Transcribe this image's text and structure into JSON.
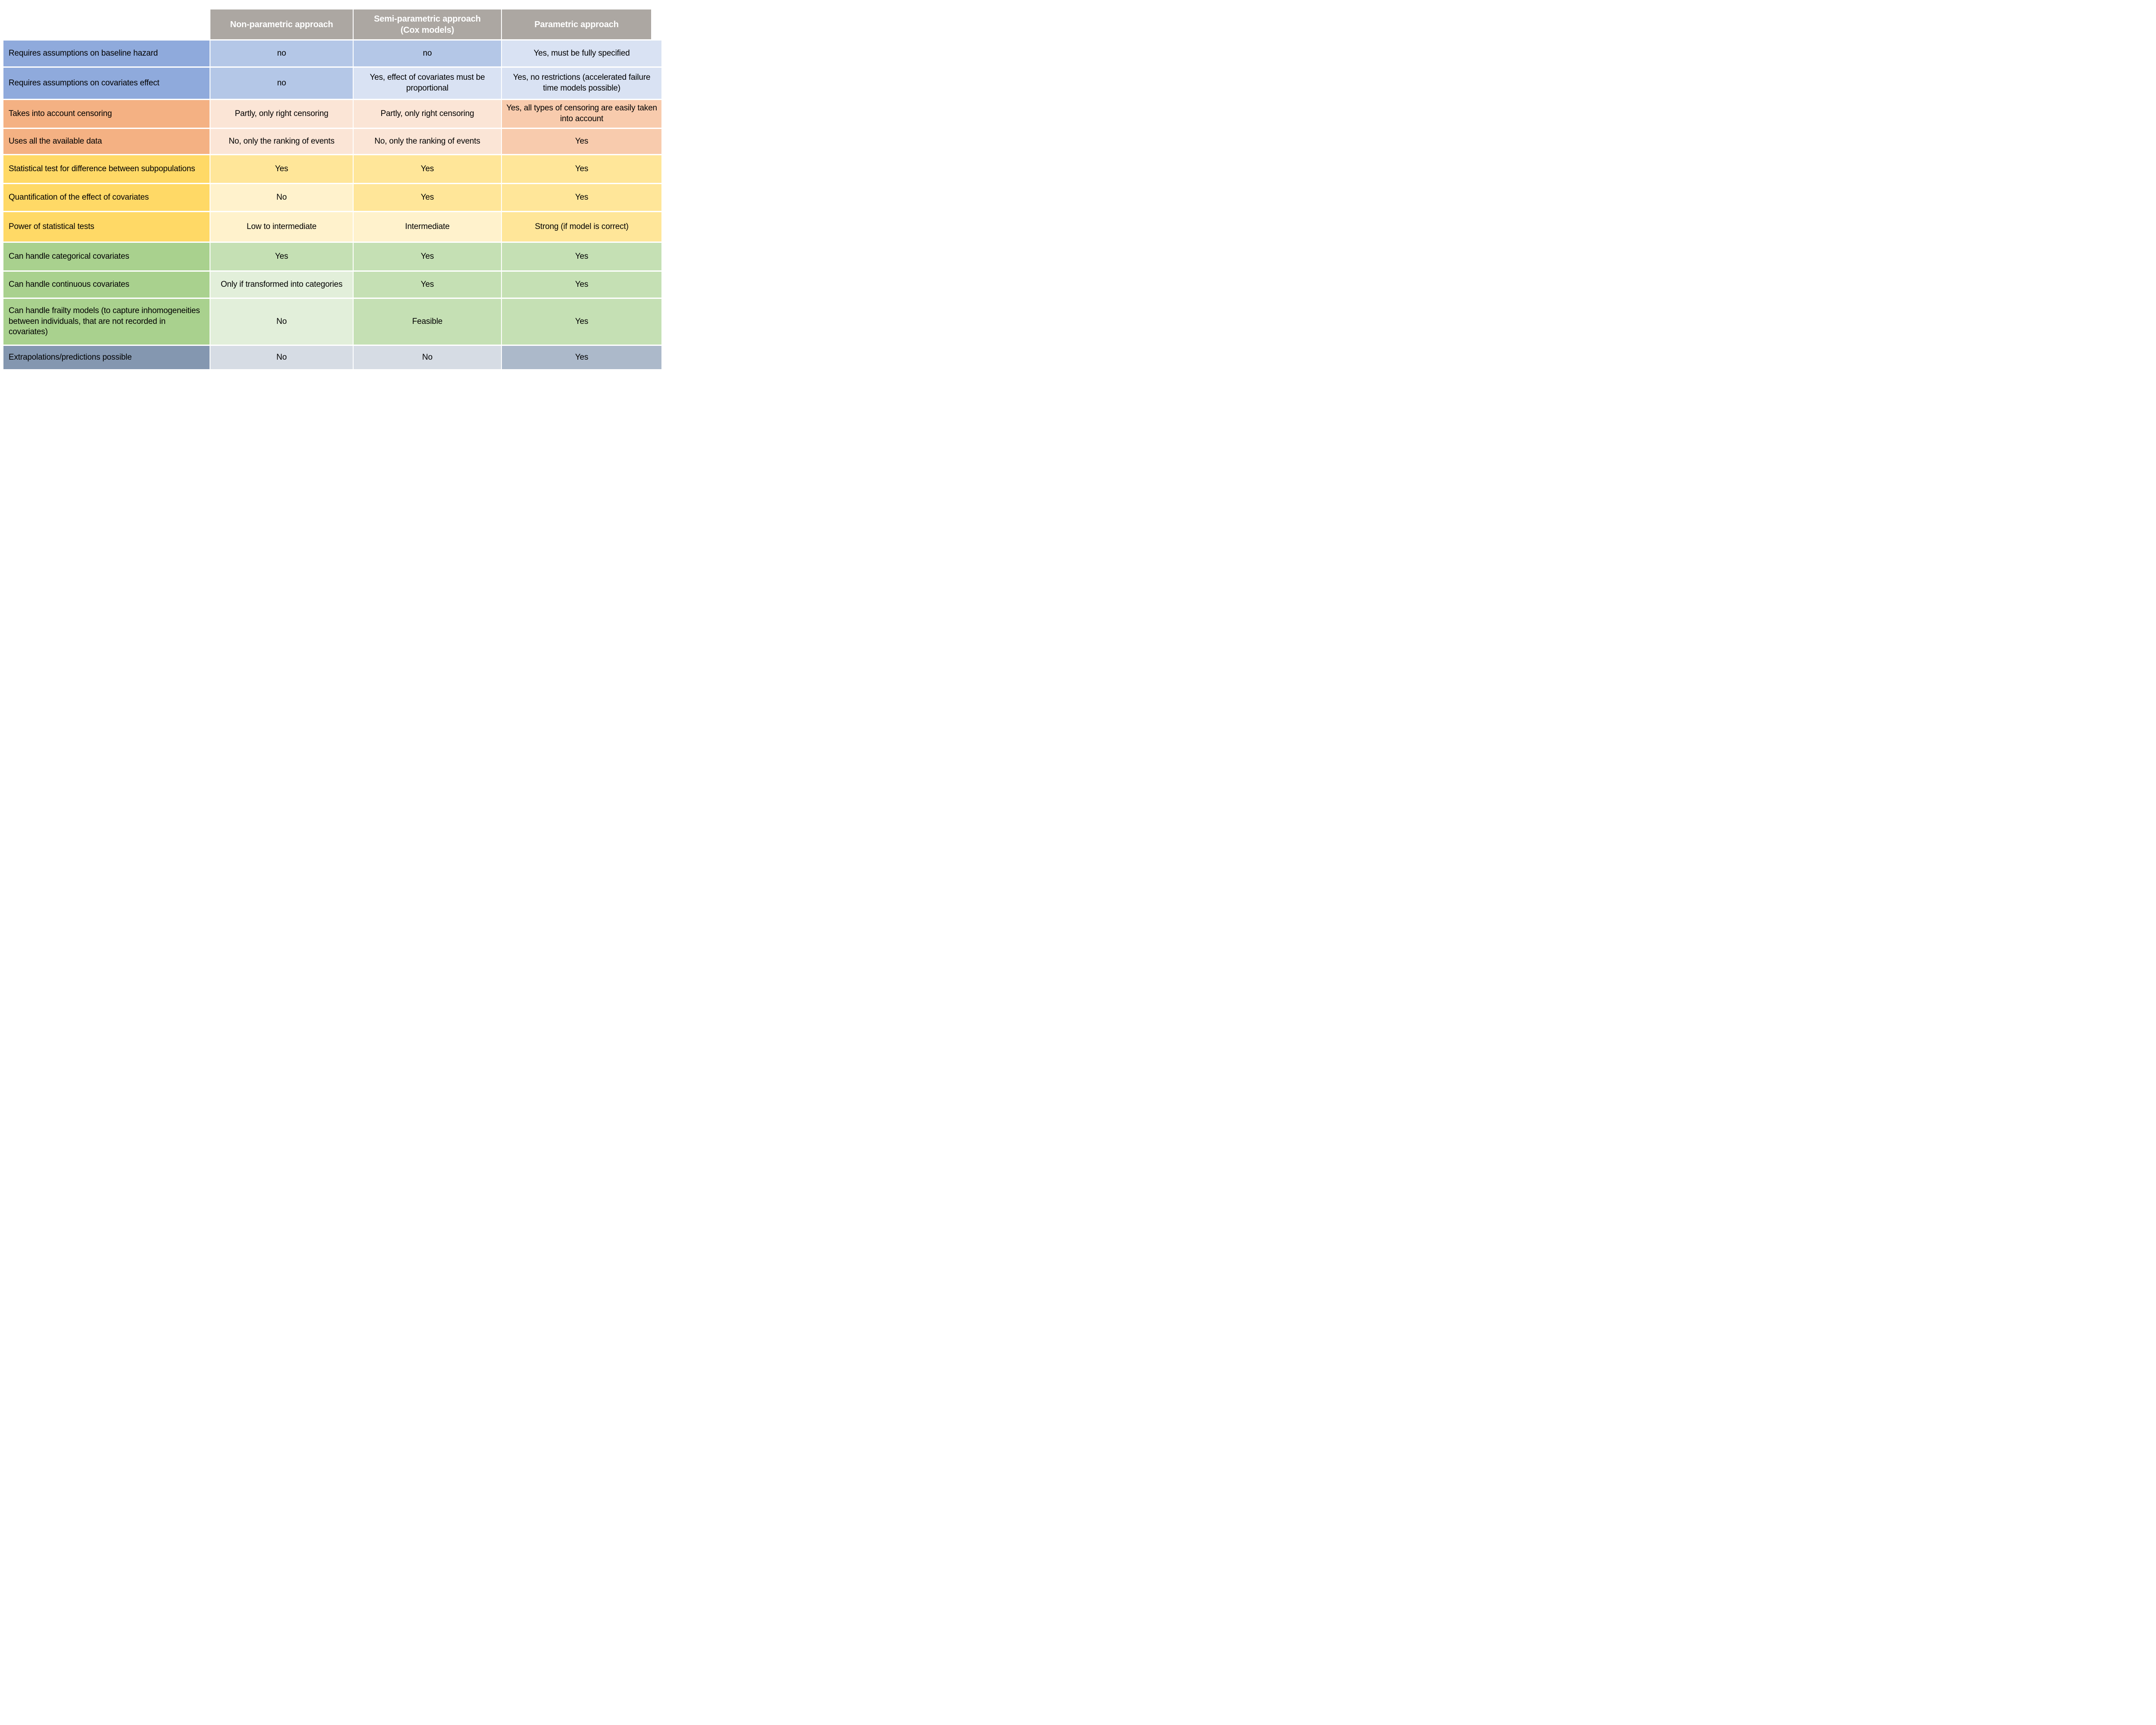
{
  "table": {
    "columns": {
      "nonparametric": "Non-parametric approach",
      "semiparametric": "Semi-parametric approach\n(Cox models)",
      "parametric": "Parametric approach"
    },
    "rows": [
      {
        "label": "Requires assumptions on baseline hazard",
        "cells": [
          "no",
          "no",
          "Yes, must be fully specified"
        ]
      },
      {
        "label": "Requires assumptions on covariates effect",
        "cells": [
          "no",
          "Yes, effect of covariates must be  proportional",
          "Yes, no restrictions (accelerated failure time models possible)"
        ]
      },
      {
        "label": "Takes into account censoring",
        "cells": [
          "Partly, only right censoring",
          "Partly, only right censoring",
          "Yes, all types of censoring are easily taken into account"
        ]
      },
      {
        "label": "Uses all the available data",
        "cells": [
          "No, only the ranking of events",
          "No, only the ranking of events",
          "Yes"
        ]
      },
      {
        "label": "Statistical test for difference between subpopulations",
        "cells": [
          "Yes",
          "Yes",
          "Yes"
        ]
      },
      {
        "label": "Quantification of the effect of covariates",
        "cells": [
          "No",
          "Yes",
          "Yes"
        ]
      },
      {
        "label": "Power of statistical tests",
        "cells": [
          "Low to intermediate",
          "Intermediate",
          "Strong (if model is correct)"
        ]
      },
      {
        "label": "Can handle categorical covariates",
        "cells": [
          "Yes",
          "Yes",
          "Yes"
        ]
      },
      {
        "label": "Can handle continuous covariates",
        "cells": [
          "Only if transformed into categories",
          "Yes",
          "Yes"
        ]
      },
      {
        "label": "Can handle frailty models (to capture inhomogeneities between individuals, that are not recorded in covariates)",
        "cells": [
          "No",
          "Feasible",
          "Yes"
        ]
      },
      {
        "label": "Extrapolations/predictions possible",
        "cells": [
          "No",
          "No",
          "Yes"
        ]
      }
    ]
  },
  "colors": {
    "header_bg": "#ACA7A2",
    "header_text": "#FFFFFF",
    "text": "#000000",
    "blue": {
      "label": "#8FAADC",
      "mid": "#B4C7E7",
      "light": "#D9E2F3"
    },
    "orange": {
      "label": "#F4B183",
      "mid": "#F8CBAD",
      "light": "#FBE5D6"
    },
    "yellow": {
      "label": "#FFD966",
      "mid": "#FFE699",
      "light": "#FFF2CC"
    },
    "green": {
      "label": "#A9D18E",
      "mid": "#C5E0B4",
      "light": "#E2EFDA"
    },
    "slate": {
      "label": "#8497B0",
      "mid": "#ACB9CA",
      "light": "#D6DCE4"
    }
  }
}
